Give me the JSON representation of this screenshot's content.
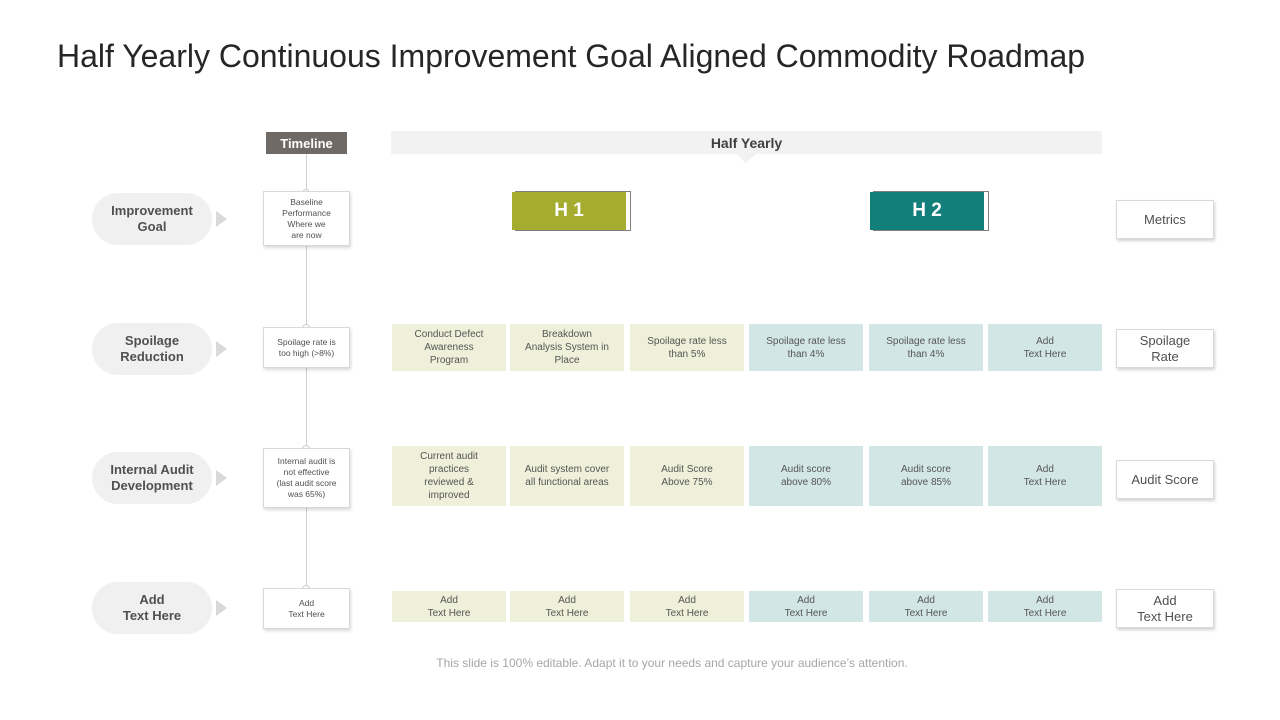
{
  "title": "Half Yearly Continuous Improvement Goal Aligned Commodity Roadmap",
  "timeline_label": "Timeline",
  "period_label": "Half Yearly",
  "phases": [
    {
      "label": "H 1",
      "color": "#a4ad2f"
    },
    {
      "label": "H 2",
      "color": "#137f7b"
    }
  ],
  "rows": [
    {
      "goal": "Improvement\nGoal",
      "timeline": "Baseline\nPerformance\nWhere we\nare now",
      "cells": [],
      "metric": "Metrics"
    },
    {
      "goal": "Spoilage\nReduction",
      "timeline": "Spoilage rate is\ntoo high (>8%)",
      "cells": [
        "Conduct Defect\nAwareness\nProgram",
        "Breakdown\nAnalysis System in\nPlace",
        "Spoilage rate less\nthan 5%",
        "Spoilage rate less\nthan 4%",
        "Spoilage rate less\nthan 4%",
        "Add\nText Here"
      ],
      "metric": "Spoilage\nRate"
    },
    {
      "goal": "Internal Audit\nDevelopment",
      "timeline": "Internal audit is\nnot effective\n(last audit score\nwas 65%)",
      "cells": [
        "Current audit\npractices\nreviewed &\nimproved",
        "Audit system cover\nall functional areas",
        "Audit Score\nAbove 75%",
        "Audit score\nabove 80%",
        "Audit score\nabove 85%",
        "Add\nText Here"
      ],
      "metric": "Audit Score"
    },
    {
      "goal": "Add\nText Here",
      "timeline": "Add\nText Here",
      "cells": [
        "Add\nText Here",
        "Add\nText Here",
        "Add\nText Here",
        "Add\nText Here",
        "Add\nText Here",
        "Add\nText Here"
      ],
      "metric": "Add\nText Here"
    }
  ],
  "footer": "This slide is 100% editable. Adapt it to your needs and capture your audience’s attention."
}
